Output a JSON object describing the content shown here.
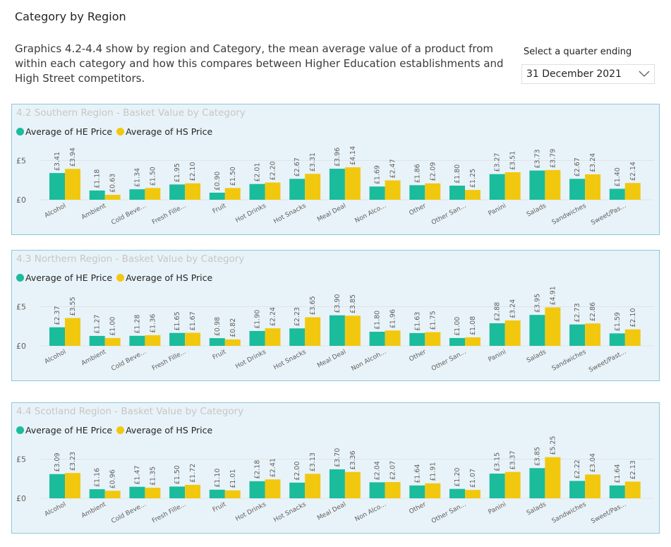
{
  "page": {
    "title": "Category by Region",
    "description": "Graphics 4.2-4.4 show by region and Category, the mean average value of a product from within each category and how this compares between Higher Education establishments and High Street competitors.",
    "slicer_label": "Select a quarter ending",
    "slicer_value": "31 December 2021"
  },
  "colors": {
    "he": "#1abc9c",
    "hs": "#f2c80f",
    "panel_bg": "#e8f3f9",
    "panel_border": "#8dc7da"
  },
  "chart_data": [
    {
      "type": "bar",
      "title": "4.2 Southern Region - Basket Value by Category",
      "categories": [
        "Alcohol",
        "Ambient",
        "Cold Beve...",
        "Fresh Fille...",
        "Fruit",
        "Hot Drinks",
        "Hot Snacks",
        "Meal Deal",
        "Non Alco...",
        "Other",
        "Other San...",
        "Panini",
        "Salads",
        "Sandwiches",
        "Sweet/Pas..."
      ],
      "series": [
        {
          "name": "Average of HE Price",
          "values": [
            3.41,
            1.18,
            1.34,
            1.95,
            0.9,
            2.01,
            2.67,
            3.96,
            1.69,
            1.86,
            1.8,
            3.27,
            3.73,
            2.67,
            1.4
          ],
          "labels": [
            "£3.41",
            "£1.18",
            "£1.34",
            "£1.95",
            "£0.90",
            "£2.01",
            "£2.67",
            "£3.96",
            "£1.69",
            "£1.86",
            "£1.80",
            "£3.27",
            "£3.73",
            "£2.67",
            "£1.40"
          ]
        },
        {
          "name": "Average of HS Price",
          "values": [
            3.94,
            0.63,
            1.5,
            2.1,
            1.5,
            2.2,
            3.31,
            4.14,
            2.47,
            2.09,
            1.25,
            3.51,
            3.79,
            3.24,
            2.14
          ],
          "labels": [
            "£3.94",
            "£0.63",
            "£1.50",
            "£2.10",
            "£1.50",
            "£2.20",
            "£3.31",
            "£4.14",
            "£2.47",
            "£2.09",
            "£1.25",
            "£3.51",
            "£3.79",
            "£3.24",
            "£2.14"
          ]
        }
      ],
      "y_ticks": [
        "£0",
        "£5"
      ],
      "ylim": [
        0,
        6.5
      ]
    },
    {
      "type": "bar",
      "title": "4.3 Northern Region - Basket Value by Category",
      "categories": [
        "Alcohol",
        "Ambient",
        "Cold Beve...",
        "Fresh Fille...",
        "Fruit",
        "Hot Drinks",
        "Hot Snacks",
        "Meal Deal",
        "Non Alcoh...",
        "Other",
        "Other San...",
        "Panini",
        "Salads",
        "Sandwiches",
        "Sweet/Past..."
      ],
      "series": [
        {
          "name": "Average of HE Price",
          "values": [
            2.37,
            1.27,
            1.28,
            1.65,
            0.98,
            1.9,
            2.23,
            3.9,
            1.8,
            1.63,
            1.0,
            2.88,
            3.95,
            2.73,
            1.59
          ],
          "labels": [
            "£2.37",
            "£1.27",
            "£1.28",
            "£1.65",
            "£0.98",
            "£1.90",
            "£2.23",
            "£3.90",
            "£1.80",
            "£1.63",
            "£1.00",
            "£2.88",
            "£3.95",
            "£2.73",
            "£1.59"
          ]
        },
        {
          "name": "Average of HS Price",
          "values": [
            3.55,
            1.0,
            1.36,
            1.67,
            0.82,
            2.24,
            3.65,
            3.85,
            1.96,
            1.75,
            1.08,
            3.24,
            4.91,
            2.86,
            2.1
          ],
          "labels": [
            "£3.55",
            "£1.00",
            "£1.36",
            "£1.67",
            "£0.82",
            "£2.24",
            "£3.65",
            "£3.85",
            "£1.96",
            "£1.75",
            "£1.08",
            "£3.24",
            "£4.91",
            "£2.86",
            "£2.10"
          ]
        }
      ],
      "y_ticks": [
        "£0",
        "£5"
      ],
      "ylim": [
        0,
        6.5
      ]
    },
    {
      "type": "bar",
      "title": "4.4 Scotland Region - Basket Value by Category",
      "categories": [
        "Alcohol",
        "Ambient",
        "Cold Beve...",
        "Fresh Fille...",
        "Fruit",
        "Hot Drinks",
        "Hot Snacks",
        "Meal Deal",
        "Non Alco...",
        "Other",
        "Other San...",
        "Panini",
        "Salads",
        "Sandwiches",
        "Sweet/Pas..."
      ],
      "series": [
        {
          "name": "Average of HE Price",
          "values": [
            3.09,
            1.16,
            1.47,
            1.5,
            1.1,
            2.18,
            2.0,
            3.7,
            2.04,
            1.64,
            1.2,
            3.15,
            3.85,
            2.22,
            1.64
          ],
          "labels": [
            "£3.09",
            "£1.16",
            "£1.47",
            "£1.50",
            "£1.10",
            "£2.18",
            "£2.00",
            "£3.70",
            "£2.04",
            "£1.64",
            "£1.20",
            "£3.15",
            "£3.85",
            "£2.22",
            "£1.64"
          ]
        },
        {
          "name": "Average of HS Price",
          "values": [
            3.23,
            0.96,
            1.35,
            1.72,
            1.01,
            2.41,
            3.13,
            3.36,
            2.07,
            1.91,
            1.07,
            3.37,
            5.25,
            3.04,
            2.13
          ],
          "labels": [
            "£3.23",
            "£0.96",
            "£1.35",
            "£1.72",
            "£1.01",
            "£2.41",
            "£3.13",
            "£3.36",
            "£2.07",
            "£1.91",
            "£1.07",
            "£3.37",
            "£5.25",
            "£3.04",
            "£2.13"
          ]
        }
      ],
      "y_ticks": [
        "£0",
        "£5"
      ],
      "ylim": [
        0,
        6.5
      ]
    }
  ]
}
